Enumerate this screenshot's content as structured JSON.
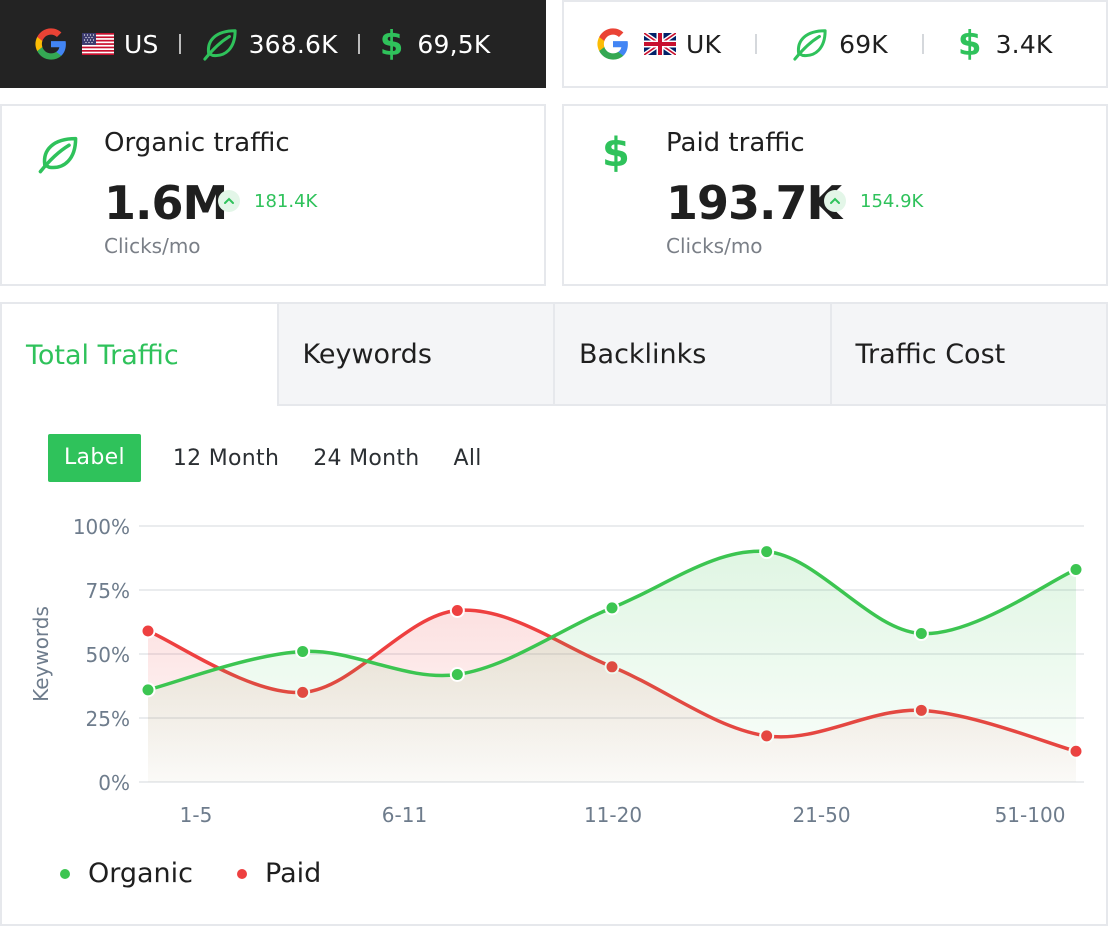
{
  "markets": [
    {
      "country": "US",
      "organic": "368.6K",
      "paid": "69,5K",
      "active": true
    },
    {
      "country": "UK",
      "organic": "69K",
      "paid": "3.4K",
      "active": false
    }
  ],
  "stats": {
    "organic": {
      "title": "Organic traffic",
      "value": "1.6M",
      "change": "181.4K",
      "unit": "Clicks/mo"
    },
    "paid": {
      "title": "Paid traffic",
      "value": "193.7K",
      "change": "154.9K",
      "unit": "Clicks/mo"
    }
  },
  "tabs": [
    {
      "label": "Total Traffic",
      "active": true
    },
    {
      "label": "Keywords",
      "active": false
    },
    {
      "label": "Backlinks",
      "active": false
    },
    {
      "label": "Traffic Cost",
      "active": false
    }
  ],
  "ranges": [
    {
      "label": "Label",
      "active": true
    },
    {
      "label": "12 Month",
      "active": false
    },
    {
      "label": "24 Month",
      "active": false
    },
    {
      "label": "All",
      "active": false
    }
  ],
  "colors": {
    "accent": "#2fc25b",
    "organic": "#3cc551",
    "paid": "#ee4040",
    "dark": "#232323"
  },
  "chart_data": {
    "type": "line",
    "x": [
      1,
      2,
      3,
      4,
      5,
      6,
      7
    ],
    "categories": [
      "1-5",
      "6-11",
      "11-20",
      "21-50",
      "51-100"
    ],
    "ylabel": "Keywords",
    "yticks": [
      "100%",
      "75%",
      "50%",
      "25%",
      "0%"
    ],
    "ylim": [
      0,
      100
    ],
    "grid": true,
    "legend": "bottom-left",
    "series": [
      {
        "name": "Organic",
        "color": "#3cc551",
        "values": [
          36,
          51,
          42,
          68,
          90,
          58,
          83
        ]
      },
      {
        "name": "Paid",
        "color": "#ee4040",
        "values": [
          59,
          35,
          67,
          45,
          18,
          28,
          12
        ]
      }
    ]
  }
}
